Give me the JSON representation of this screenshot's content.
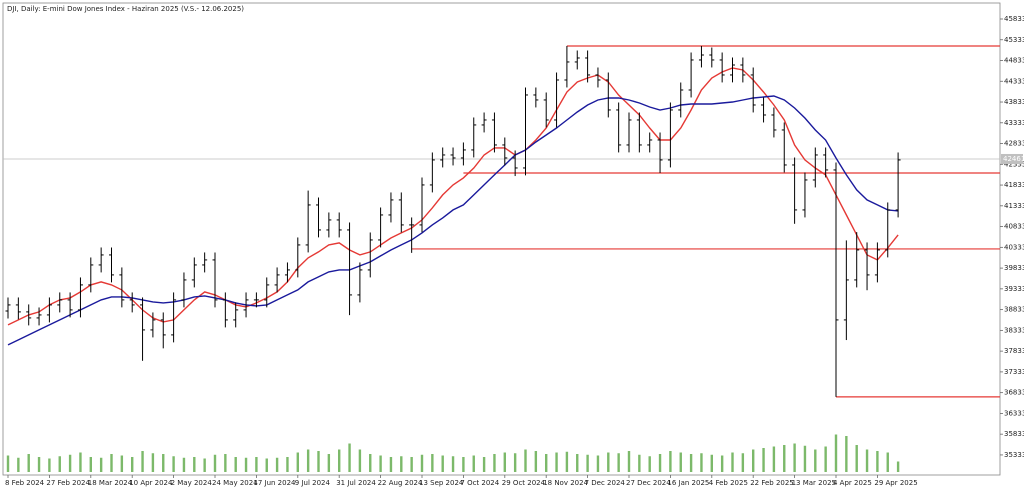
{
  "chart_data": {
    "type": "ohlc",
    "title": "DJI, Daily: E-mini Dow Jones Index - Haziran 2025 (V.S.- 12.06.2025)",
    "categories": [
      "8 Feb 2024",
      null,
      null,
      null,
      "27 Feb 2024",
      null,
      null,
      null,
      "18 Mar 2024",
      null,
      null,
      null,
      "10 Apr 2024",
      null,
      null,
      null,
      "2 May 2024",
      null,
      null,
      null,
      "24 May 2024",
      null,
      null,
      null,
      "17 Jun 2024",
      null,
      null,
      null,
      "9 Jul 2024",
      null,
      null,
      null,
      "31 Jul 2024",
      null,
      null,
      null,
      "22 Aug 2024",
      null,
      null,
      null,
      "13 Sep 2024",
      null,
      null,
      null,
      "7 Oct 2024",
      null,
      null,
      null,
      "29 Oct 2024",
      null,
      null,
      null,
      "18 Nov 2024",
      null,
      null,
      null,
      "7 Dec 2024",
      null,
      null,
      null,
      "27 Dec 2024",
      null,
      null,
      null,
      "16 Jan 2025",
      null,
      null,
      null,
      "4 Feb 2025",
      null,
      null,
      null,
      "22 Feb 2025",
      null,
      null,
      null,
      "13 Mar 2025",
      null,
      null,
      null,
      "4 Apr 2025",
      null,
      null,
      null,
      "29 Apr 2025",
      null,
      null
    ],
    "open": [
      38800,
      38946,
      38778,
      38633,
      38705,
      38946,
      39067,
      38826,
      39428,
      39909,
      40150,
      39669,
      39067,
      38946,
      38344,
      38585,
      38224,
      39067,
      39548,
      39909,
      40030,
      39067,
      38585,
      38826,
      39067,
      39067,
      39428,
      39669,
      39789,
      40391,
      41354,
      40752,
      40993,
      40752,
      39187,
      39789,
      40511,
      41113,
      41475,
      40873,
      40873,
      41836,
      42438,
      42558,
      42486,
      42679,
      43281,
      43401,
      42799,
      42486,
      42245,
      44003,
      43883,
      43401,
      44364,
      44798,
      44894,
      44485,
      44364,
      43642,
      42799,
      43401,
      42799,
      42919,
      42438,
      43642,
      44123,
      44846,
      44966,
      44846,
      44485,
      44725,
      44485,
      43762,
      43521,
      43160,
      42317,
      41234,
      41956,
      42558,
      42197,
      38585,
      39548,
      40271,
      39669,
      40271,
      41234
    ],
    "high": [
      39126,
      39126,
      38958,
      38885,
      39126,
      39247,
      39247,
      39608,
      40089,
      40330,
      40330,
      39849,
      39247,
      39126,
      38765,
      38765,
      39247,
      39728,
      40089,
      40210,
      40210,
      39247,
      39006,
      39247,
      39247,
      39608,
      39849,
      39969,
      40571,
      41700,
      41534,
      41173,
      41173,
      40932,
      39969,
      40691,
      41293,
      41655,
      41655,
      41053,
      42016,
      42618,
      42738,
      42738,
      42859,
      43461,
      43581,
      43581,
      42979,
      42666,
      44183,
      44183,
      44063,
      44544,
      45183,
      45074,
      45074,
      44665,
      44544,
      43822,
      43581,
      43581,
      43099,
      43099,
      43822,
      44303,
      45026,
      45183,
      45146,
      45026,
      44905,
      44905,
      44665,
      43942,
      43701,
      43340,
      42497,
      42136,
      42738,
      42738,
      42377,
      40500,
      40700,
      40451,
      40451,
      41414,
      42618
    ],
    "low": [
      38620,
      38598,
      38453,
      38453,
      38525,
      38766,
      38646,
      38646,
      39248,
      39729,
      39489,
      38887,
      38766,
      37600,
      38164,
      37900,
      38044,
      38887,
      39368,
      39729,
      38887,
      38405,
      38405,
      38646,
      38887,
      38887,
      39248,
      39489,
      39609,
      40211,
      40572,
      40572,
      40572,
      38700,
      39007,
      39609,
      40331,
      40933,
      40693,
      40200,
      40693,
      41656,
      42258,
      42306,
      42306,
      42499,
      43101,
      42619,
      42306,
      42050,
      42065,
      43703,
      43221,
      43221,
      44184,
      44618,
      44305,
      44184,
      43462,
      42619,
      42619,
      42619,
      42619,
      42124,
      42258,
      43462,
      43943,
      44666,
      44666,
      44305,
      44305,
      44305,
      43582,
      43341,
      42980,
      42137,
      40900,
      41054,
      41776,
      42017,
      36731,
      38100,
      39368,
      39300,
      39489,
      40091,
      41054
    ],
    "close": [
      38946,
      38778,
      38633,
      38705,
      38946,
      39067,
      38826,
      39428,
      39909,
      40150,
      39669,
      39067,
      38946,
      38344,
      38585,
      38224,
      39067,
      39548,
      39909,
      40030,
      39067,
      38585,
      38826,
      39067,
      39067,
      39428,
      39669,
      39789,
      40391,
      41354,
      40752,
      40993,
      40752,
      39187,
      39789,
      40511,
      41113,
      41475,
      40873,
      40873,
      41836,
      42438,
      42558,
      42486,
      42679,
      43281,
      43401,
      42799,
      42486,
      42245,
      44003,
      43883,
      43401,
      44364,
      44798,
      44894,
      44485,
      44364,
      43642,
      42799,
      43401,
      42799,
      42919,
      42438,
      43642,
      44123,
      44846,
      44966,
      44846,
      44485,
      44725,
      44485,
      43762,
      43521,
      43160,
      42317,
      41234,
      41956,
      42558,
      42197,
      38585,
      39548,
      40271,
      39669,
      40271,
      41234,
      42438
    ],
    "bar_color": "#000000",
    "lines": [
      {
        "color": "#e53935",
        "values": [
          38465,
          38585,
          38706,
          38778,
          38946,
          39067,
          39115,
          39259,
          39428,
          39500,
          39428,
          39307,
          39067,
          38826,
          38633,
          38537,
          38585,
          38826,
          39067,
          39259,
          39187,
          39067,
          38946,
          38898,
          38994,
          39115,
          39259,
          39500,
          39837,
          40078,
          40222,
          40391,
          40439,
          40270,
          40150,
          40222,
          40391,
          40559,
          40680,
          40800,
          40993,
          41282,
          41595,
          41836,
          42005,
          42245,
          42558,
          42727,
          42727,
          42558,
          42678,
          42919,
          43208,
          43642,
          44075,
          44316,
          44412,
          44484,
          44316,
          44003,
          43762,
          43521,
          43208,
          42919,
          42919,
          43208,
          43642,
          44123,
          44412,
          44557,
          44653,
          44605,
          44364,
          44075,
          43762,
          43401,
          42799,
          42438,
          42245,
          42077,
          41595,
          41113,
          40632,
          40150,
          40030,
          40319,
          40632
        ]
      },
      {
        "color": "#1a1a9c",
        "values": [
          37983,
          38103,
          38224,
          38344,
          38465,
          38585,
          38706,
          38826,
          38946,
          39067,
          39139,
          39139,
          39115,
          39067,
          39019,
          38994,
          39019,
          39067,
          39139,
          39163,
          39115,
          39067,
          38994,
          38946,
          38922,
          38946,
          39067,
          39187,
          39307,
          39500,
          39620,
          39741,
          39789,
          39789,
          39885,
          39982,
          40126,
          40270,
          40391,
          40511,
          40680,
          40873,
          41041,
          41234,
          41354,
          41595,
          41836,
          42077,
          42317,
          42558,
          42678,
          42871,
          43040,
          43208,
          43401,
          43594,
          43762,
          43882,
          43930,
          43930,
          43882,
          43810,
          43714,
          43642,
          43690,
          43762,
          43786,
          43786,
          43786,
          43810,
          43834,
          43882,
          43930,
          43955,
          43979,
          43882,
          43690,
          43449,
          43160,
          42919,
          42486,
          42077,
          41716,
          41475,
          41354,
          41234,
          41210
        ]
      }
    ],
    "volume": [
      110000,
      95000,
      120000,
      100000,
      90000,
      105000,
      115000,
      130000,
      100000,
      95000,
      120000,
      110000,
      100000,
      140000,
      125000,
      120000,
      105000,
      95000,
      100000,
      90000,
      115000,
      120000,
      100000,
      95000,
      100000,
      90000,
      95000,
      100000,
      130000,
      150000,
      140000,
      120000,
      150000,
      190000,
      150000,
      120000,
      110000,
      100000,
      105000,
      100000,
      115000,
      120000,
      110000,
      105000,
      100000,
      110000,
      100000,
      120000,
      130000,
      125000,
      150000,
      140000,
      120000,
      130000,
      135000,
      120000,
      115000,
      110000,
      130000,
      125000,
      140000,
      115000,
      105000,
      120000,
      140000,
      130000,
      120000,
      125000,
      115000,
      110000,
      130000,
      125000,
      150000,
      160000,
      170000,
      180000,
      190000,
      175000,
      150000,
      170000,
      250000,
      240000,
      180000,
      150000,
      140000,
      130000,
      70000
    ],
    "volume_color": "#7cb96a",
    "vlim": [
      0,
      300000
    ],
    "levels": [
      {
        "value": 45183,
        "start": 54
      },
      {
        "value": 42124,
        "start": 44
      },
      {
        "value": 40295,
        "start": 39
      },
      {
        "value": 36731,
        "start": 80
      }
    ],
    "level_color": "#e53935",
    "last_price": 42461,
    "ylim": [
      34970,
      46170
    ],
    "yticks": [
      35333,
      35833,
      36333,
      36833,
      37333,
      37833,
      38333,
      38833,
      39333,
      39833,
      40333,
      40833,
      41333,
      41833,
      42333,
      42833,
      43333,
      43833,
      44333,
      44833,
      45333,
      45833
    ]
  }
}
